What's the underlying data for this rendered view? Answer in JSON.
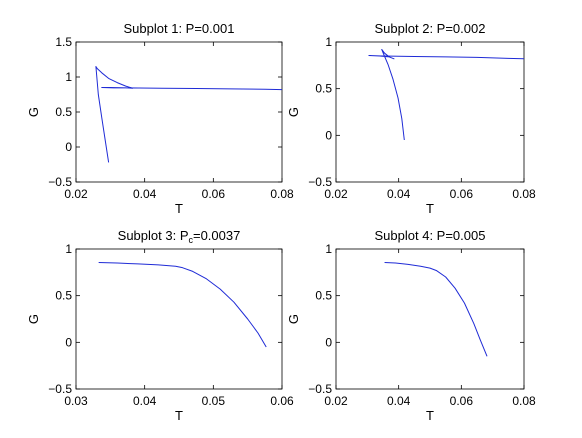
{
  "chart_data": [
    {
      "type": "line",
      "title": "Subplot 1: P=0.001",
      "title_parts": {
        "prefix": "Subplot 1: P",
        "subscript": "",
        "suffix": "=0.001"
      },
      "xlabel": "T",
      "ylabel": "G",
      "xlim": [
        0.02,
        0.08
      ],
      "ylim": [
        -0.5,
        1.5
      ],
      "xticks": [
        0.02,
        0.04,
        0.06,
        0.08
      ],
      "xtick_labels": [
        "0.02",
        "0.04",
        "0.06",
        "0.08"
      ],
      "yticks": [
        -0.5,
        0,
        0.5,
        1,
        1.5
      ],
      "ytick_labels": [
        "−0.5",
        "0",
        "0.5",
        "1",
        "1.5"
      ],
      "grid": false,
      "color": "#1f2bd6",
      "series": [
        {
          "x": [
            0.0295,
            0.0285,
            0.0275,
            0.0265,
            0.0258,
            0.0262,
            0.0275,
            0.0295,
            0.032,
            0.0345,
            0.0365,
            0.0345,
            0.031,
            0.0275,
            0.03,
            0.035,
            0.045,
            0.055,
            0.065,
            0.075,
            0.08
          ],
          "y": [
            -0.22,
            0.1,
            0.42,
            0.75,
            1.15,
            1.12,
            1.06,
            0.98,
            0.92,
            0.87,
            0.84,
            0.845,
            0.845,
            0.85,
            0.85,
            0.845,
            0.84,
            0.835,
            0.83,
            0.825,
            0.82
          ]
        }
      ]
    },
    {
      "type": "line",
      "title": "Subplot 2: P=0.002",
      "title_parts": {
        "prefix": "Subplot 2: P",
        "subscript": "",
        "suffix": "=0.002"
      },
      "xlabel": "T",
      "ylabel": "G",
      "xlim": [
        0.02,
        0.08
      ],
      "ylim": [
        -0.5,
        1
      ],
      "xticks": [
        0.02,
        0.04,
        0.06,
        0.08
      ],
      "xtick_labels": [
        "0.02",
        "0.04",
        "0.06",
        "0.08"
      ],
      "yticks": [
        -0.5,
        0,
        0.5,
        1
      ],
      "ytick_labels": [
        "−0.5",
        "0",
        "0.5",
        "1"
      ],
      "grid": false,
      "color": "#1f2bd6",
      "series": [
        {
          "x": [
            0.0418,
            0.041,
            0.0398,
            0.0382,
            0.0366,
            0.0352,
            0.0346,
            0.0355,
            0.037,
            0.0385,
            0.037,
            0.034,
            0.0305,
            0.035,
            0.045,
            0.055,
            0.065,
            0.075,
            0.08
          ],
          "y": [
            -0.05,
            0.18,
            0.4,
            0.6,
            0.76,
            0.87,
            0.92,
            0.88,
            0.84,
            0.82,
            0.84,
            0.85,
            0.855,
            0.85,
            0.845,
            0.84,
            0.835,
            0.825,
            0.82
          ]
        }
      ]
    },
    {
      "type": "line",
      "title": "Subplot 3: Pc=0.0037",
      "title_parts": {
        "prefix": "Subplot 3: P",
        "subscript": "c",
        "suffix": "=0.0037"
      },
      "xlabel": "T",
      "ylabel": "G",
      "xlim": [
        0.03,
        0.06
      ],
      "ylim": [
        -0.5,
        1
      ],
      "xticks": [
        0.03,
        0.04,
        0.05,
        0.06
      ],
      "xtick_labels": [
        "0.03",
        "0.04",
        "0.05",
        "0.06"
      ],
      "yticks": [
        -0.5,
        0,
        0.5,
        1
      ],
      "ytick_labels": [
        "−0.5",
        "0",
        "0.5",
        "1"
      ],
      "grid": false,
      "color": "#1f2bd6",
      "series": [
        {
          "x": [
            0.0333,
            0.036,
            0.039,
            0.042,
            0.0445,
            0.0455,
            0.047,
            0.049,
            0.051,
            0.053,
            0.055,
            0.0565,
            0.0577
          ],
          "y": [
            0.855,
            0.85,
            0.84,
            0.83,
            0.815,
            0.8,
            0.76,
            0.68,
            0.57,
            0.43,
            0.25,
            0.1,
            -0.05
          ]
        }
      ]
    },
    {
      "type": "line",
      "title": "Subplot 4: P=0.005",
      "title_parts": {
        "prefix": "Subplot 4: P",
        "subscript": "",
        "suffix": "=0.005"
      },
      "xlabel": "T",
      "ylabel": "G",
      "xlim": [
        0.02,
        0.08
      ],
      "ylim": [
        -0.5,
        1
      ],
      "xticks": [
        0.02,
        0.04,
        0.06,
        0.08
      ],
      "xtick_labels": [
        "0.02",
        "0.04",
        "0.06",
        "0.08"
      ],
      "yticks": [
        -0.5,
        0,
        0.5,
        1
      ],
      "ytick_labels": [
        "−0.5",
        "0",
        "0.5",
        "1"
      ],
      "grid": false,
      "color": "#1f2bd6",
      "series": [
        {
          "x": [
            0.0355,
            0.039,
            0.043,
            0.047,
            0.05,
            0.052,
            0.055,
            0.058,
            0.061,
            0.064,
            0.066,
            0.0682
          ],
          "y": [
            0.855,
            0.85,
            0.835,
            0.815,
            0.795,
            0.77,
            0.7,
            0.58,
            0.42,
            0.2,
            0.03,
            -0.15
          ]
        }
      ]
    }
  ]
}
